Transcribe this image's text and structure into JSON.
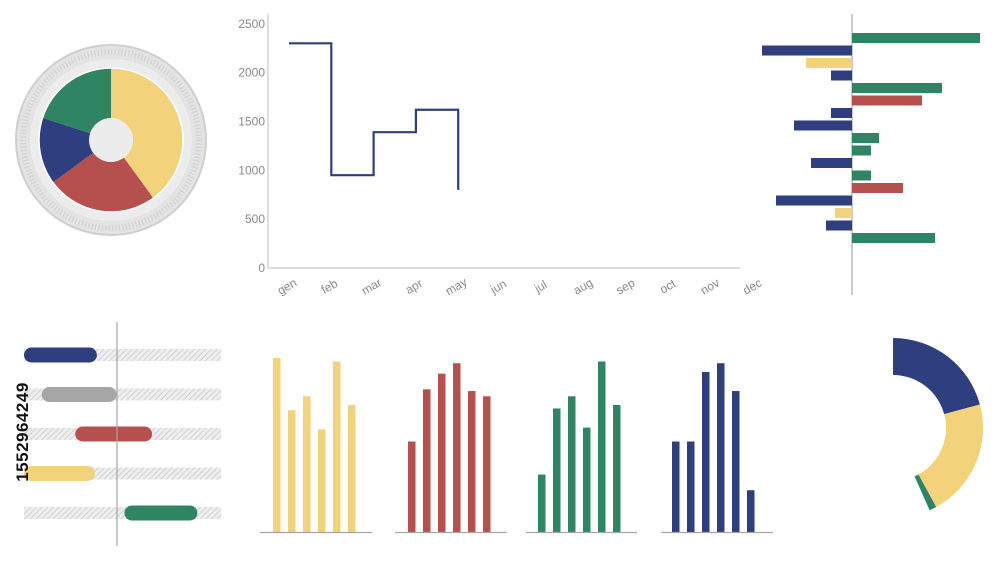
{
  "colors": {
    "navy": "#2e3e7e",
    "yellow": "#f2d27a",
    "red": "#b5504e",
    "green": "#2f8463",
    "gray": "#a6a6a6",
    "axis": "#bdbdbd",
    "text": "#8a8a8a"
  },
  "sidebar_id": "1552964249",
  "chart_data": [
    {
      "type": "pie",
      "id": "donut-pie",
      "slices": [
        {
          "color": "yellow",
          "value": 40
        },
        {
          "color": "red",
          "value": 25
        },
        {
          "color": "navy",
          "value": 15
        },
        {
          "color": "green",
          "value": 20
        }
      ]
    },
    {
      "type": "line",
      "id": "step-line",
      "step": true,
      "categories": [
        "gen",
        "feb",
        "mar",
        "apr",
        "may",
        "jun",
        "jul",
        "aug",
        "sep",
        "oct",
        "nov",
        "dec"
      ],
      "values": [
        2300,
        950,
        1390,
        1620,
        800,
        null,
        null,
        null,
        null,
        null,
        null,
        null
      ],
      "yticks": [
        0,
        500,
        1000,
        1500,
        2000,
        2500
      ],
      "ylim": [
        0,
        2600
      ]
    },
    {
      "type": "bar",
      "id": "diverging-bars",
      "orientation": "horizontal",
      "xlim": [
        -100,
        140
      ],
      "bars": [
        {
          "color": "green",
          "value": 128
        },
        {
          "color": "navy",
          "value": -90
        },
        {
          "color": "yellow",
          "value": -46
        },
        {
          "color": "navy",
          "value": -21
        },
        {
          "color": "green",
          "value": 90
        },
        {
          "color": "red",
          "value": 70
        },
        {
          "color": "navy",
          "value": -21
        },
        {
          "color": "navy",
          "value": -58
        },
        {
          "color": "green",
          "value": 27
        },
        {
          "color": "green",
          "value": 19
        },
        {
          "color": "navy",
          "value": -41
        },
        {
          "color": "green",
          "value": 19
        },
        {
          "color": "red",
          "value": 51
        },
        {
          "color": "navy",
          "value": -76
        },
        {
          "color": "yellow",
          "value": -17
        },
        {
          "color": "navy",
          "value": -26
        },
        {
          "color": "green",
          "value": 83
        }
      ]
    },
    {
      "type": "bar",
      "id": "range-bars",
      "orientation": "horizontal",
      "xlim": [
        0,
        100
      ],
      "rows": [
        {
          "color": "navy",
          "start": 0,
          "end": 37
        },
        {
          "color": "gray",
          "start": 9,
          "end": 47
        },
        {
          "color": "red",
          "start": 26,
          "end": 65
        },
        {
          "color": "yellow",
          "start": 0,
          "end": 36
        },
        {
          "color": "green",
          "start": 51,
          "end": 88
        }
      ]
    },
    {
      "type": "bar",
      "id": "bars-yellow",
      "color": "yellow",
      "ylim": [
        0,
        100
      ],
      "values": [
        100,
        70,
        78,
        59,
        98,
        73
      ]
    },
    {
      "type": "bar",
      "id": "bars-red",
      "color": "red",
      "ylim": [
        0,
        100
      ],
      "values": [
        52,
        82,
        91,
        97,
        81,
        78
      ]
    },
    {
      "type": "bar",
      "id": "bars-green",
      "color": "green",
      "ylim": [
        0,
        100
      ],
      "values": [
        33,
        71,
        78,
        60,
        98,
        73
      ]
    },
    {
      "type": "bar",
      "id": "bars-navy",
      "color": "navy",
      "ylim": [
        0,
        100
      ],
      "values": [
        52,
        52,
        92,
        97,
        81,
        24
      ]
    },
    {
      "type": "pie",
      "id": "half-donut",
      "slices": [
        {
          "color": "navy",
          "value": 48
        },
        {
          "color": "yellow",
          "value": 49
        },
        {
          "color": "green",
          "value": 3
        }
      ]
    }
  ]
}
